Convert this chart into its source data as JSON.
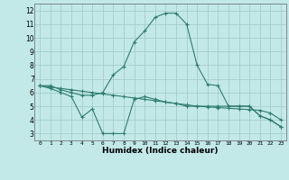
{
  "x": [
    0,
    1,
    2,
    3,
    4,
    5,
    6,
    7,
    8,
    9,
    10,
    11,
    12,
    13,
    14,
    15,
    16,
    17,
    18,
    19,
    20,
    21,
    22,
    23
  ],
  "line1": [
    6.5,
    6.5,
    6.2,
    6.0,
    5.8,
    5.8,
    6.0,
    7.3,
    7.9,
    9.7,
    10.5,
    11.5,
    11.8,
    11.8,
    11.0,
    8.0,
    6.6,
    6.5,
    5.0,
    5.0,
    5.0,
    4.3,
    4.0,
    3.5
  ],
  "line2": [
    6.5,
    6.3,
    6.0,
    5.7,
    4.2,
    4.8,
    3.0,
    3.0,
    3.0,
    5.5,
    5.7,
    5.5,
    5.3,
    5.2,
    5.0,
    5.0,
    5.0,
    5.0,
    5.0,
    5.0,
    5.0,
    4.3,
    4.0,
    3.5
  ],
  "line3": [
    6.5,
    6.4,
    6.3,
    6.2,
    6.1,
    6.0,
    5.9,
    5.8,
    5.7,
    5.6,
    5.5,
    5.4,
    5.3,
    5.2,
    5.1,
    5.0,
    4.95,
    4.9,
    4.85,
    4.8,
    4.75,
    4.7,
    4.5,
    4.0
  ],
  "color": "#2e7d6e",
  "bg_color": "#c2e8e8",
  "grid_color": "#a8cccc",
  "xlabel": "Humidex (Indice chaleur)",
  "ylim": [
    2.5,
    12.5
  ],
  "xlim": [
    -0.5,
    23.5
  ],
  "yticks": [
    3,
    4,
    5,
    6,
    7,
    8,
    9,
    10,
    11,
    12
  ],
  "xticks": [
    0,
    1,
    2,
    3,
    4,
    5,
    6,
    7,
    8,
    9,
    10,
    11,
    12,
    13,
    14,
    15,
    16,
    17,
    18,
    19,
    20,
    21,
    22,
    23
  ]
}
